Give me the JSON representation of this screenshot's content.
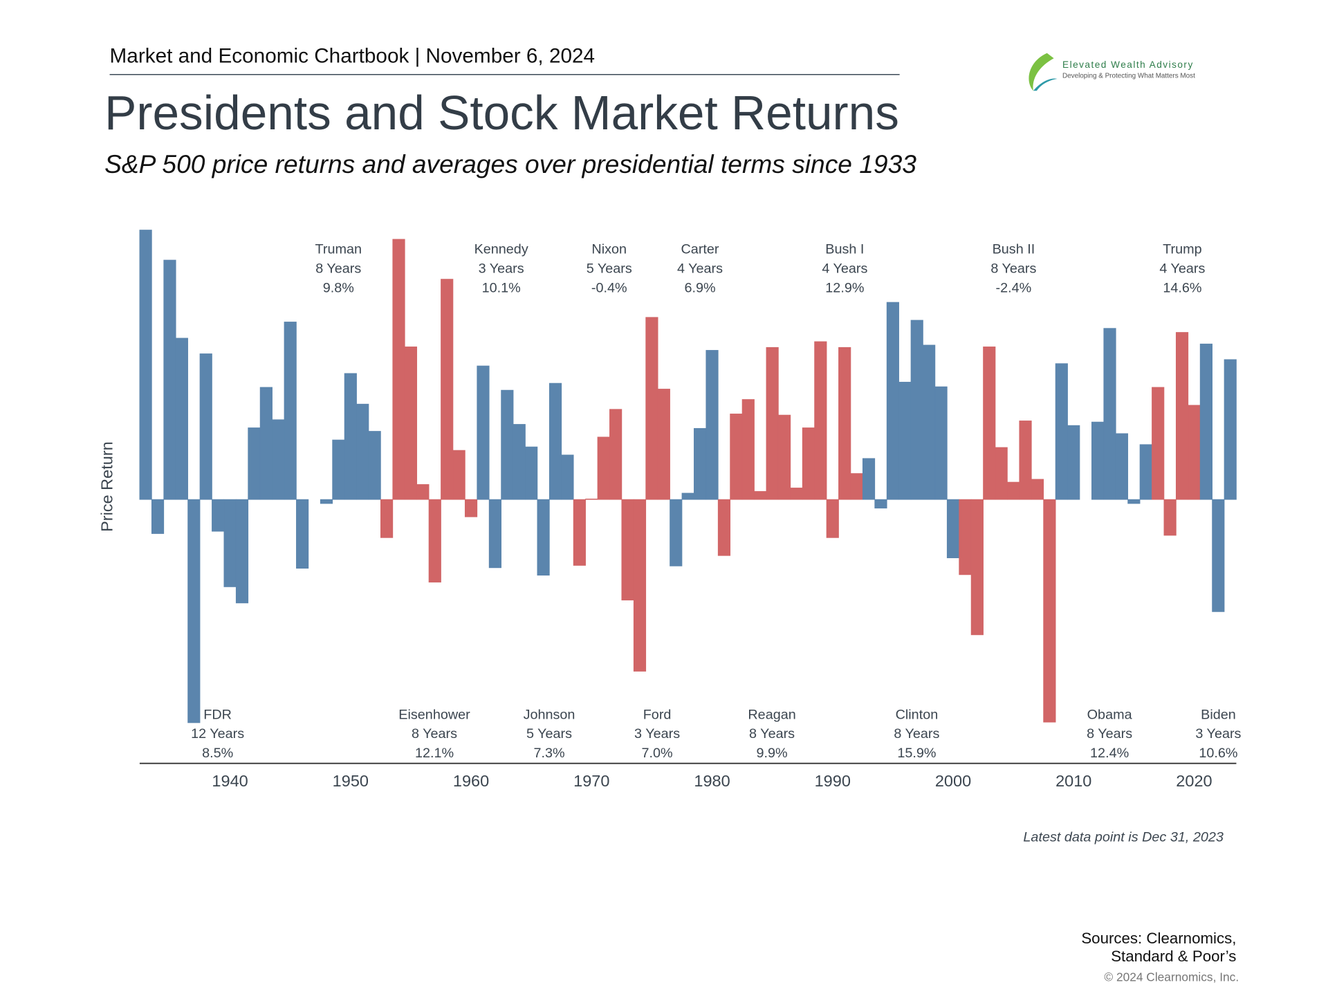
{
  "header": "Market and Economic Chartbook | November 6, 2024",
  "logo": {
    "name": "Elevated Wealth Advisory",
    "tagline": "Developing & Protecting What Matters Most"
  },
  "chart_data": {
    "type": "bar",
    "title": "Presidents and Stock Market Returns",
    "subtitle": "S&P 500 price returns and averages over presidential terms since 1933",
    "y_label": "Price Return",
    "x": [
      1933,
      1934,
      1935,
      1936,
      1937,
      1938,
      1939,
      1940,
      1941,
      1942,
      1943,
      1944,
      1945,
      1946,
      1947,
      1948,
      1949,
      1950,
      1951,
      1952,
      1953,
      1954,
      1955,
      1956,
      1957,
      1958,
      1959,
      1960,
      1961,
      1962,
      1963,
      1964,
      1965,
      1966,
      1967,
      1968,
      1969,
      1970,
      1971,
      1972,
      1973,
      1974,
      1975,
      1976,
      1977,
      1978,
      1979,
      1980,
      1981,
      1982,
      1983,
      1984,
      1985,
      1986,
      1987,
      1988,
      1989,
      1990,
      1991,
      1992,
      1993,
      1994,
      1995,
      1996,
      1997,
      1998,
      1999,
      2000,
      2001,
      2002,
      2003,
      2004,
      2005,
      2006,
      2007,
      2008,
      2009,
      2010,
      2011,
      2012,
      2013,
      2014,
      2015,
      2016,
      2017,
      2018,
      2019,
      2020,
      2021,
      2022,
      2023
    ],
    "values": [
      46.6,
      -5.9,
      41.4,
      27.9,
      -38.6,
      25.2,
      -5.5,
      -15.1,
      -17.9,
      12.4,
      19.4,
      13.8,
      30.7,
      -11.9,
      0.0,
      -0.7,
      10.3,
      21.8,
      16.5,
      11.8,
      -6.6,
      45.0,
      26.4,
      2.6,
      -14.3,
      38.1,
      8.5,
      -3.0,
      23.1,
      -11.8,
      18.9,
      13.0,
      9.1,
      -13.1,
      20.1,
      7.7,
      -11.4,
      0.1,
      10.8,
      15.6,
      -17.4,
      -29.7,
      31.5,
      19.1,
      -11.5,
      1.1,
      12.3,
      25.8,
      -9.7,
      14.8,
      17.3,
      1.4,
      26.3,
      14.6,
      2.0,
      12.4,
      27.3,
      -6.6,
      26.3,
      4.5,
      7.1,
      -1.5,
      34.1,
      20.3,
      31.0,
      26.7,
      19.5,
      -10.1,
      -13.0,
      -23.4,
      26.4,
      9.0,
      3.0,
      13.6,
      3.5,
      -38.5,
      23.5,
      12.8,
      0.0,
      13.4,
      29.6,
      11.4,
      -0.7,
      9.5,
      19.4,
      -6.2,
      28.9,
      16.3,
      26.9,
      -19.4,
      24.2
    ],
    "colors": [
      "#5b85ad",
      "#5b85ad",
      "#5b85ad",
      "#5b85ad",
      "#5b85ad",
      "#5b85ad",
      "#5b85ad",
      "#5b85ad",
      "#5b85ad",
      "#5b85ad",
      "#5b85ad",
      "#5b85ad",
      "#5b85ad",
      "#5b85ad",
      "#5b85ad",
      "#5b85ad",
      "#5b85ad",
      "#5b85ad",
      "#5b85ad",
      "#5b85ad",
      "#d16566",
      "#d16566",
      "#d16566",
      "#d16566",
      "#d16566",
      "#d16566",
      "#d16566",
      "#d16566",
      "#5b85ad",
      "#5b85ad",
      "#5b85ad",
      "#5b85ad",
      "#5b85ad",
      "#5b85ad",
      "#5b85ad",
      "#5b85ad",
      "#d16566",
      "#d16566",
      "#d16566",
      "#d16566",
      "#d16566",
      "#d16566",
      "#d16566",
      "#d16566",
      "#5b85ad",
      "#5b85ad",
      "#5b85ad",
      "#5b85ad",
      "#d16566",
      "#d16566",
      "#d16566",
      "#d16566",
      "#d16566",
      "#d16566",
      "#d16566",
      "#d16566",
      "#d16566",
      "#d16566",
      "#d16566",
      "#d16566",
      "#5b85ad",
      "#5b85ad",
      "#5b85ad",
      "#5b85ad",
      "#5b85ad",
      "#5b85ad",
      "#5b85ad",
      "#5b85ad",
      "#d16566",
      "#d16566",
      "#d16566",
      "#d16566",
      "#d16566",
      "#d16566",
      "#d16566",
      "#d16566",
      "#5b85ad",
      "#5b85ad",
      "#5b85ad",
      "#5b85ad",
      "#5b85ad",
      "#5b85ad",
      "#5b85ad",
      "#5b85ad",
      "#d16566",
      "#d16566",
      "#d16566",
      "#d16566",
      "#5b85ad",
      "#5b85ad",
      "#5b85ad"
    ],
    "xlim": [
      1932.5,
      2023.5
    ],
    "xticks": [
      1940,
      1950,
      1960,
      1970,
      1980,
      1990,
      2000,
      2010,
      2020
    ],
    "ylim": [
      -45,
      48
    ],
    "annotations": [
      {
        "name": "FDR",
        "term": "12 Years",
        "average": "8.5%"
      },
      {
        "name": "Truman",
        "term": "8 Years",
        "average": "9.8%"
      },
      {
        "name": "Eisenhower",
        "term": "8 Years",
        "average": "12.1%"
      },
      {
        "name": "Kennedy",
        "term": "3 Years",
        "average": "10.1%"
      },
      {
        "name": "Johnson",
        "term": "5 Years",
        "average": "7.3%"
      },
      {
        "name": "Nixon",
        "term": "5 Years",
        "average": "-0.4%"
      },
      {
        "name": "Ford",
        "term": "3 Years",
        "average": "7.0%"
      },
      {
        "name": "Carter",
        "term": "4 Years",
        "average": "6.9%"
      },
      {
        "name": "Reagan",
        "term": "8 Years",
        "average": "9.9%"
      },
      {
        "name": "Bush I",
        "term": "4 Years",
        "average": "12.9%"
      },
      {
        "name": "Clinton",
        "term": "8 Years",
        "average": "15.9%"
      },
      {
        "name": "Bush II",
        "term": "8 Years",
        "average": "-2.4%"
      },
      {
        "name": "Obama",
        "term": "8 Years",
        "average": "12.4%"
      },
      {
        "name": "Trump",
        "term": "4 Years",
        "average": "14.6%"
      },
      {
        "name": "Biden",
        "term": "3 Years",
        "average": "10.6%"
      }
    ],
    "note": "Latest data point is Dec 31, 2023"
  },
  "sources": [
    "Sources: Clearnomics,",
    "Standard & Poor’s"
  ],
  "copyright": "© 2024 Clearnomics, Inc."
}
